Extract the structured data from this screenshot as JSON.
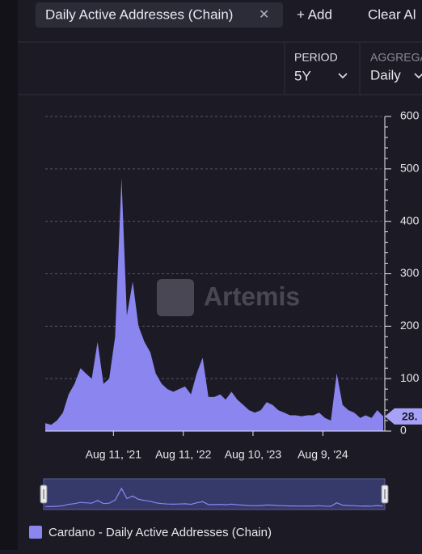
{
  "toolbar": {
    "chip": "Daily Active Addresses (Chain)",
    "close": "✕",
    "add": "+ Add",
    "clear": "Clear Al"
  },
  "controls": {
    "period_label": "PERIOD",
    "period_value": "5Y",
    "aggregation_label": "AGGREGA",
    "aggregation_value": "Daily"
  },
  "chart_data": {
    "type": "area",
    "watermark": "Artemis",
    "x": [
      "2020-08-20",
      "2020-09-20",
      "2020-10-20",
      "2020-11-20",
      "2020-12-20",
      "2021-01-20",
      "2021-02-20",
      "2021-03-20",
      "2021-04-20",
      "2021-05-20",
      "2021-06-20",
      "2021-07-20",
      "2021-08-20",
      "2021-09-22",
      "2021-10-20",
      "2021-11-20",
      "2021-12-20",
      "2022-01-20",
      "2022-02-20",
      "2022-03-20",
      "2022-04-20",
      "2022-05-20",
      "2022-06-20",
      "2022-07-20",
      "2022-08-20",
      "2022-09-20",
      "2022-10-20",
      "2022-11-20",
      "2022-12-20",
      "2023-01-20",
      "2023-02-20",
      "2023-03-20",
      "2023-04-20",
      "2023-05-20",
      "2023-06-20",
      "2023-07-20",
      "2023-08-20",
      "2023-09-20",
      "2023-10-20",
      "2023-11-20",
      "2023-12-20",
      "2024-01-20",
      "2024-02-20",
      "2024-03-20",
      "2024-04-20",
      "2024-05-20",
      "2024-06-20",
      "2024-07-20",
      "2024-08-20",
      "2024-09-20",
      "2024-10-20",
      "2024-11-20",
      "2024-12-20",
      "2025-01-20",
      "2025-02-20",
      "2025-03-20",
      "2025-04-20",
      "2025-05-20",
      "2025-06-20"
    ],
    "series": [
      {
        "name": "Cardano - Daily Active Addresses (Chain)",
        "color": "#8b85f0",
        "values": [
          15,
          12,
          20,
          35,
          70,
          90,
          120,
          110,
          100,
          170,
          90,
          100,
          180,
          483,
          220,
          285,
          200,
          170,
          150,
          110,
          90,
          80,
          75,
          80,
          85,
          70,
          110,
          140,
          65,
          65,
          70,
          60,
          75,
          60,
          50,
          40,
          35,
          40,
          55,
          50,
          40,
          35,
          30,
          30,
          28,
          30,
          30,
          35,
          25,
          20,
          110,
          50,
          40,
          35,
          25,
          30,
          25,
          40,
          28
        ]
      }
    ],
    "last_label": "28.",
    "xlim": [
      "2020-08-20",
      "2025-06-20"
    ],
    "xticks": [
      {
        "value": "2021-08-11",
        "label": "Aug 11, '21"
      },
      {
        "value": "2022-08-11",
        "label": "Aug 11, '22"
      },
      {
        "value": "2023-08-10",
        "label": "Aug 10, '23"
      },
      {
        "value": "2024-08-09",
        "label": "Aug 9, '24"
      }
    ],
    "ylim": [
      0,
      600
    ],
    "yticks": [
      0,
      100,
      200,
      300,
      400,
      500,
      600
    ],
    "grid": true
  }
}
